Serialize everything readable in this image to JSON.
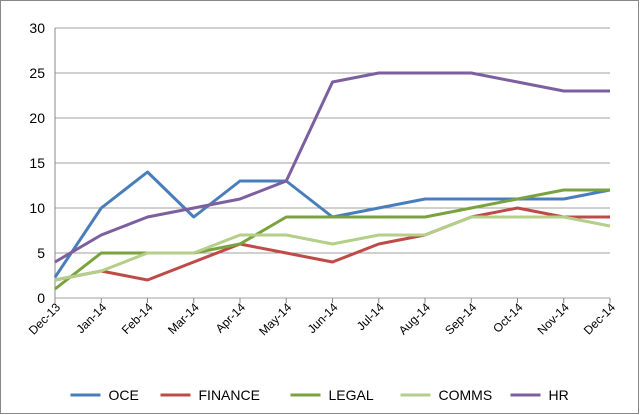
{
  "chart_data": {
    "type": "line",
    "categories": [
      "Dec-13",
      "Jan-14",
      "Feb-14",
      "Mar-14",
      "Apr-14",
      "May-14",
      "Jun-14",
      "Jul-14",
      "Aug-14",
      "Sep-14",
      "Oct-14",
      "Nov-14",
      "Dec-14"
    ],
    "series": [
      {
        "name": "OCE",
        "color": "#4a7ebb",
        "values": [
          2.3,
          10,
          14,
          9,
          13,
          13,
          9,
          10,
          11,
          11,
          11,
          11,
          12
        ]
      },
      {
        "name": "FINANCE",
        "color": "#be4b48",
        "values": [
          2,
          3,
          2,
          4,
          6,
          5,
          4,
          6,
          7,
          9,
          10,
          9,
          9
        ]
      },
      {
        "name": "LEGAL",
        "color": "#7aa33f",
        "values": [
          1,
          5,
          5,
          5,
          6,
          9,
          9,
          9,
          9,
          10,
          11,
          12,
          12
        ]
      },
      {
        "name": "COMMS",
        "color": "#b3cf8a",
        "values": [
          2,
          3,
          5,
          5,
          7,
          7,
          6,
          7,
          7,
          9,
          9,
          9,
          8
        ]
      },
      {
        "name": "HR",
        "color": "#7d5fa0",
        "values": [
          4,
          7,
          9,
          10,
          11,
          13,
          24,
          25,
          25,
          25,
          24,
          23,
          23
        ]
      }
    ],
    "ylim": [
      0,
      30
    ],
    "yticks": [
      0,
      5,
      10,
      15,
      20,
      25,
      30
    ],
    "grid": true,
    "legend": "bottom"
  }
}
